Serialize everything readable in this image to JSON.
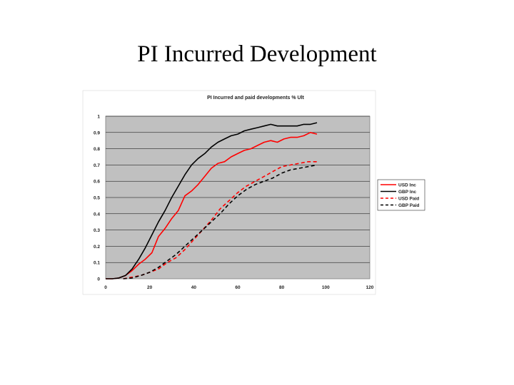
{
  "slide": {
    "title": "PI Incurred Development"
  },
  "chart_data": {
    "type": "line",
    "title": "PI Incurred and paid developments % Ult",
    "xlabel": "",
    "ylabel": "",
    "xlim": [
      0,
      120
    ],
    "ylim": [
      0,
      1
    ],
    "xticks": [
      0,
      20,
      40,
      60,
      80,
      100,
      120
    ],
    "yticks": [
      0,
      0.1,
      0.2,
      0.3,
      0.4,
      0.5,
      0.6,
      0.7,
      0.8,
      0.9,
      1
    ],
    "ytick_labels": [
      "0",
      "0.1",
      "0.2",
      "0.3",
      "0.4",
      "0.5",
      "0.6",
      "0.7",
      "0.8",
      "0.9",
      "1"
    ],
    "grid": "horizontal",
    "plot_background": "#c0c0c0",
    "legend_position": "right",
    "series": [
      {
        "name": "USD Inc",
        "color": "#ff0000",
        "dash": "solid",
        "x": [
          0,
          3,
          6,
          9,
          12,
          15,
          18,
          21,
          24,
          27,
          30,
          33,
          36,
          39,
          42,
          45,
          48,
          51,
          54,
          57,
          60,
          63,
          66,
          69,
          72,
          75,
          78,
          81,
          84,
          87,
          90,
          93,
          96
        ],
        "y": [
          0,
          0,
          0.005,
          0.02,
          0.05,
          0.09,
          0.12,
          0.16,
          0.26,
          0.31,
          0.37,
          0.42,
          0.51,
          0.54,
          0.58,
          0.63,
          0.68,
          0.71,
          0.72,
          0.75,
          0.77,
          0.79,
          0.8,
          0.82,
          0.84,
          0.85,
          0.84,
          0.86,
          0.87,
          0.87,
          0.88,
          0.9,
          0.89
        ]
      },
      {
        "name": "GBP Inc",
        "color": "#000000",
        "dash": "solid",
        "x": [
          0,
          3,
          6,
          9,
          12,
          15,
          18,
          21,
          24,
          27,
          30,
          33,
          36,
          39,
          42,
          45,
          48,
          51,
          54,
          57,
          60,
          63,
          66,
          69,
          72,
          75,
          78,
          81,
          84,
          87,
          90,
          93,
          96
        ],
        "y": [
          0,
          0,
          0.005,
          0.02,
          0.06,
          0.12,
          0.19,
          0.27,
          0.35,
          0.42,
          0.5,
          0.57,
          0.64,
          0.7,
          0.74,
          0.77,
          0.81,
          0.84,
          0.86,
          0.88,
          0.89,
          0.91,
          0.92,
          0.93,
          0.94,
          0.95,
          0.94,
          0.94,
          0.94,
          0.94,
          0.95,
          0.95,
          0.96
        ]
      },
      {
        "name": "USD Paid",
        "color": "#ff0000",
        "dash": "dashed",
        "x": [
          8,
          12,
          16,
          20,
          24,
          28,
          32,
          36,
          40,
          44,
          48,
          52,
          56,
          60,
          64,
          68,
          72,
          76,
          80,
          84,
          88,
          92,
          96
        ],
        "y": [
          0,
          0.01,
          0.02,
          0.04,
          0.06,
          0.1,
          0.13,
          0.18,
          0.24,
          0.3,
          0.36,
          0.43,
          0.48,
          0.53,
          0.57,
          0.6,
          0.63,
          0.66,
          0.69,
          0.7,
          0.71,
          0.72,
          0.72
        ]
      },
      {
        "name": "GBP Paid",
        "color": "#000000",
        "dash": "dashed",
        "x": [
          8,
          12,
          16,
          20,
          24,
          28,
          32,
          36,
          40,
          44,
          48,
          52,
          56,
          60,
          64,
          68,
          72,
          76,
          80,
          84,
          88,
          92,
          96
        ],
        "y": [
          0,
          0.005,
          0.02,
          0.04,
          0.07,
          0.11,
          0.15,
          0.2,
          0.25,
          0.3,
          0.35,
          0.4,
          0.46,
          0.51,
          0.55,
          0.58,
          0.6,
          0.62,
          0.65,
          0.67,
          0.68,
          0.69,
          0.7
        ]
      }
    ]
  }
}
